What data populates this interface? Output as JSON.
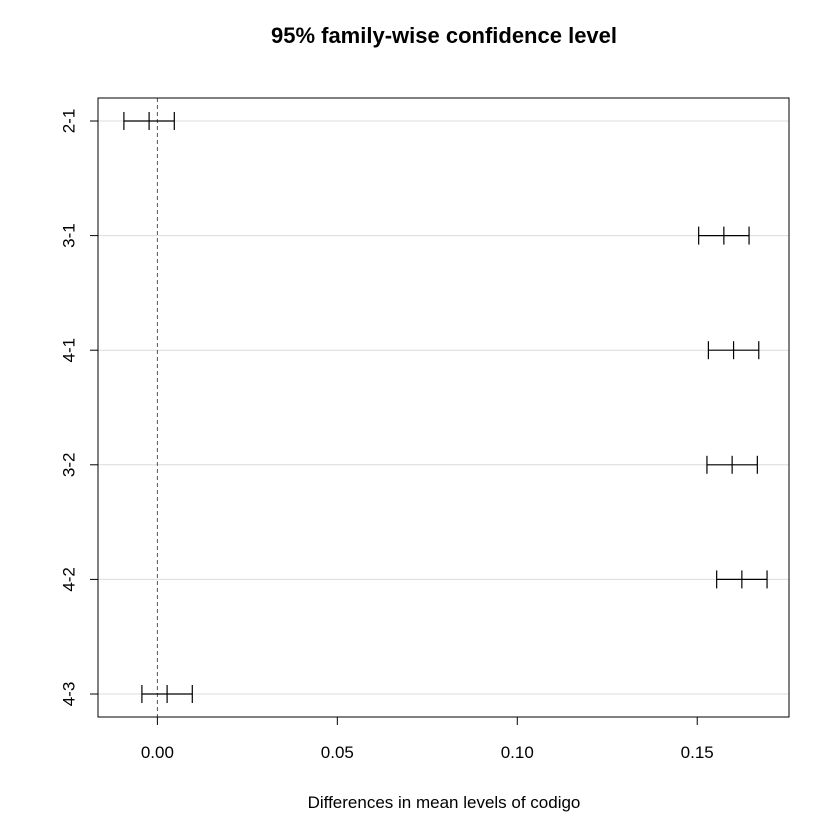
{
  "chart_data": {
    "type": "errorbar",
    "title": "95% family-wise confidence level",
    "xlabel": "Differences in mean levels of codigo",
    "ylabel": "",
    "xlim": [
      -0.0165,
      0.1755
    ],
    "x_ticks": [
      0.0,
      0.05,
      0.1,
      0.15
    ],
    "x_tick_labels": [
      "0.00",
      "0.05",
      "0.10",
      "0.15"
    ],
    "reference_line": 0,
    "grid": "horizontal",
    "comparisons": [
      {
        "label": "2-1",
        "lower": -0.0093,
        "estimate": -0.0023,
        "upper": 0.0047
      },
      {
        "label": "3-1",
        "lower": 0.1504,
        "estimate": 0.1574,
        "upper": 0.1644
      },
      {
        "label": "4-1",
        "lower": 0.1531,
        "estimate": 0.1601,
        "upper": 0.1671
      },
      {
        "label": "3-2",
        "lower": 0.1527,
        "estimate": 0.1597,
        "upper": 0.1667
      },
      {
        "label": "4-2",
        "lower": 0.1554,
        "estimate": 0.1624,
        "upper": 0.1694
      },
      {
        "label": "4-3",
        "lower": -0.0043,
        "estimate": 0.0027,
        "upper": 0.0097
      }
    ]
  }
}
